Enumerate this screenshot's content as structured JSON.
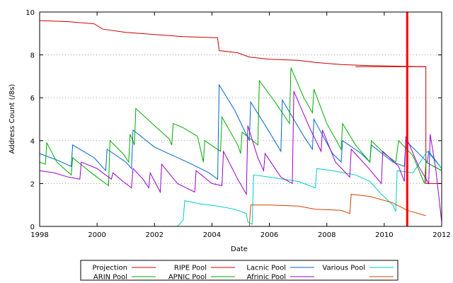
{
  "chart_data": {
    "type": "line",
    "xlabel": "Date",
    "ylabel": "Address Count (/8s)",
    "xlim": [
      1998,
      2012
    ],
    "ylim": [
      0,
      10
    ],
    "x_ticks": [
      1998,
      2000,
      2002,
      2004,
      2006,
      2008,
      2010,
      2012
    ],
    "y_ticks": [
      0,
      2,
      4,
      6,
      8,
      10
    ],
    "grid": "horizontal dotted",
    "legend_position": "bottom",
    "marker_line": {
      "x": 2010.8,
      "color": "#ff0000"
    },
    "series": [
      {
        "name": "Projection",
        "color": "#cc0000",
        "points": [
          [
            2009.0,
            7.45
          ],
          [
            2011.45,
            7.45
          ],
          [
            2011.45,
            2.0
          ],
          [
            2012.0,
            2.0
          ]
        ]
      },
      {
        "name": "RIPE Pool",
        "color": "#cc0000",
        "points": [
          [
            1998.0,
            9.6
          ],
          [
            1999.0,
            9.55
          ],
          [
            1999.9,
            9.45
          ],
          [
            2000.2,
            9.2
          ],
          [
            2001.0,
            9.05
          ],
          [
            2002.0,
            8.95
          ],
          [
            2003.0,
            8.85
          ],
          [
            2004.2,
            8.8
          ],
          [
            2004.25,
            8.2
          ],
          [
            2004.9,
            8.1
          ],
          [
            2005.3,
            7.9
          ],
          [
            2006.0,
            7.8
          ],
          [
            2007.0,
            7.75
          ],
          [
            2007.6,
            7.65
          ],
          [
            2008.5,
            7.55
          ],
          [
            2009.5,
            7.5
          ],
          [
            2011.45,
            7.45
          ]
        ]
      },
      {
        "name": "Lacnic Pool",
        "color": "#0066cc",
        "points": [
          [
            1998.0,
            3.4
          ],
          [
            1998.6,
            3.1
          ],
          [
            1999.1,
            2.8
          ],
          [
            1999.15,
            3.8
          ],
          [
            1999.9,
            3.2
          ],
          [
            2000.3,
            2.6
          ],
          [
            2000.35,
            3.6
          ],
          [
            2001.0,
            3.0
          ],
          [
            2001.2,
            2.7
          ],
          [
            2001.25,
            4.5
          ],
          [
            2002.0,
            3.7
          ],
          [
            2003.3,
            2.9
          ],
          [
            2003.9,
            2.5
          ],
          [
            2004.2,
            2.2
          ],
          [
            2004.25,
            6.6
          ],
          [
            2004.8,
            5.4
          ],
          [
            2005.3,
            4.0
          ],
          [
            2005.35,
            5.8
          ],
          [
            2006.0,
            4.4
          ],
          [
            2006.4,
            3.5
          ],
          [
            2006.45,
            5.9
          ],
          [
            2007.2,
            4.2
          ],
          [
            2007.5,
            3.6
          ],
          [
            2007.55,
            5.0
          ],
          [
            2008.2,
            3.4
          ],
          [
            2008.5,
            3.0
          ],
          [
            2008.55,
            4.0
          ],
          [
            2009.2,
            3.4
          ],
          [
            2009.5,
            3.0
          ],
          [
            2009.55,
            3.8
          ],
          [
            2010.3,
            3.0
          ],
          [
            2010.7,
            2.8
          ],
          [
            2010.75,
            4.0
          ],
          [
            2011.5,
            3.0
          ],
          [
            2011.55,
            3.5
          ],
          [
            2012.0,
            2.7
          ]
        ]
      },
      {
        "name": "Various Pool",
        "color": "#00cccc",
        "points": [
          [
            2002.8,
            0.0
          ],
          [
            2003.0,
            0.3
          ],
          [
            2003.05,
            1.2
          ],
          [
            2003.6,
            1.05
          ],
          [
            2004.2,
            0.95
          ],
          [
            2004.8,
            0.8
          ],
          [
            2005.2,
            0.6
          ],
          [
            2005.25,
            0.2
          ],
          [
            2005.4,
            0.1
          ],
          [
            2005.45,
            2.4
          ],
          [
            2006.0,
            2.3
          ],
          [
            2007.0,
            2.1
          ],
          [
            2007.6,
            1.8
          ],
          [
            2007.65,
            2.7
          ],
          [
            2008.2,
            2.6
          ],
          [
            2009.0,
            2.4
          ],
          [
            2009.5,
            2.1
          ],
          [
            2009.9,
            1.5
          ],
          [
            2010.3,
            1.0
          ],
          [
            2010.4,
            0.7
          ],
          [
            2010.45,
            2.6
          ],
          [
            2011.0,
            2.5
          ],
          [
            2011.5,
            3.5
          ],
          [
            2012.0,
            2.7
          ]
        ]
      },
      {
        "name": "ARIN Pool",
        "color": "#00aa00",
        "points": [
          [
            1998.0,
            3.0
          ],
          [
            1998.2,
            2.9
          ],
          [
            1998.25,
            3.9
          ],
          [
            1998.6,
            3.0
          ],
          [
            1999.1,
            2.4
          ],
          [
            1999.15,
            3.2
          ],
          [
            1999.8,
            2.5
          ],
          [
            2000.4,
            1.9
          ],
          [
            2000.45,
            4.0
          ],
          [
            2000.9,
            3.4
          ],
          [
            2001.1,
            3.0
          ],
          [
            2001.15,
            4.3
          ],
          [
            2001.3,
            3.8
          ],
          [
            2001.35,
            5.5
          ],
          [
            2002.0,
            4.7
          ],
          [
            2002.5,
            4.1
          ],
          [
            2002.6,
            3.8
          ],
          [
            2002.65,
            4.8
          ],
          [
            2003.0,
            4.6
          ],
          [
            2003.5,
            4.2
          ],
          [
            2003.7,
            3.0
          ],
          [
            2003.75,
            4.0
          ],
          [
            2004.3,
            3.5
          ],
          [
            2004.35,
            5.1
          ],
          [
            2004.9,
            3.8
          ],
          [
            2005.0,
            3.4
          ],
          [
            2005.05,
            4.4
          ],
          [
            2005.6,
            3.8
          ],
          [
            2005.65,
            6.8
          ],
          [
            2006.2,
            5.8
          ],
          [
            2006.7,
            4.8
          ],
          [
            2006.75,
            7.4
          ],
          [
            2007.2,
            6.0
          ],
          [
            2007.5,
            5.3
          ],
          [
            2007.55,
            6.4
          ],
          [
            2008.0,
            4.8
          ],
          [
            2008.5,
            3.6
          ],
          [
            2008.55,
            4.8
          ],
          [
            2009.0,
            3.8
          ],
          [
            2009.5,
            3.0
          ],
          [
            2009.55,
            4.0
          ],
          [
            2010.0,
            3.4
          ],
          [
            2010.4,
            3.0
          ],
          [
            2010.5,
            4.0
          ],
          [
            2011.0,
            3.3
          ],
          [
            2011.4,
            2.0
          ],
          [
            2011.45,
            3.0
          ],
          [
            2012.0,
            2.6
          ]
        ]
      },
      {
        "name": "APNIC Pool",
        "color": "#00aa00",
        "points": [
          [
            2011.45,
            3.0
          ],
          [
            2012.0,
            2.6
          ]
        ]
      },
      {
        "name": "Afrinic Pool",
        "color": "#9900cc",
        "points": [
          [
            1998.0,
            2.6
          ],
          [
            1998.5,
            2.5
          ],
          [
            1999.0,
            2.3
          ],
          [
            1999.4,
            2.2
          ],
          [
            1999.45,
            3.0
          ],
          [
            2000.0,
            2.7
          ],
          [
            2000.5,
            2.2
          ],
          [
            2000.55,
            2.5
          ],
          [
            2000.9,
            2.1
          ],
          [
            2001.2,
            1.8
          ],
          [
            2001.25,
            2.7
          ],
          [
            2001.6,
            2.2
          ],
          [
            2001.8,
            1.8
          ],
          [
            2001.85,
            2.5
          ],
          [
            2002.2,
            1.6
          ],
          [
            2002.25,
            2.9
          ],
          [
            2002.8,
            2.0
          ],
          [
            2003.4,
            1.6
          ],
          [
            2003.45,
            2.6
          ],
          [
            2004.0,
            2.0
          ],
          [
            2004.35,
            1.9
          ],
          [
            2004.4,
            3.5
          ],
          [
            2004.9,
            2.2
          ],
          [
            2005.2,
            1.5
          ],
          [
            2005.25,
            4.7
          ],
          [
            2005.6,
            3.2
          ],
          [
            2005.8,
            2.6
          ],
          [
            2005.85,
            3.4
          ],
          [
            2006.4,
            2.3
          ],
          [
            2006.8,
            2.0
          ],
          [
            2006.85,
            6.3
          ],
          [
            2007.4,
            4.6
          ],
          [
            2007.8,
            3.5
          ],
          [
            2007.85,
            4.5
          ],
          [
            2008.3,
            3.0
          ],
          [
            2008.8,
            2.3
          ],
          [
            2008.85,
            3.6
          ],
          [
            2009.4,
            2.8
          ],
          [
            2009.9,
            2.0
          ],
          [
            2009.95,
            3.5
          ],
          [
            2010.5,
            2.8
          ],
          [
            2010.7,
            2.1
          ],
          [
            2010.75,
            4.2
          ],
          [
            2011.2,
            2.8
          ],
          [
            2011.55,
            2.0
          ],
          [
            2011.6,
            4.3
          ],
          [
            2011.8,
            2.6
          ],
          [
            2012.0,
            0.2
          ]
        ]
      },
      {
        "name": "",
        "color": "#cc4400",
        "points": [
          [
            2005.3,
            0.0
          ],
          [
            2005.35,
            1.0
          ],
          [
            2006.0,
            1.0
          ],
          [
            2007.0,
            0.95
          ],
          [
            2007.6,
            0.8
          ],
          [
            2008.5,
            0.75
          ],
          [
            2008.8,
            0.6
          ],
          [
            2008.85,
            1.5
          ],
          [
            2009.5,
            1.4
          ],
          [
            2010.3,
            1.1
          ],
          [
            2010.8,
            0.75
          ],
          [
            2011.45,
            0.5
          ]
        ]
      }
    ],
    "legend_rows": [
      [
        {
          "label": "Projection",
          "series": 0
        },
        {
          "label": "RIPE Pool",
          "series": 1
        },
        {
          "label": "Lacnic Pool",
          "series": 2
        },
        {
          "label": "Various Pool",
          "series": 3
        }
      ],
      [
        {
          "label": "ARIN Pool",
          "series": 4
        },
        {
          "label": "APNIC Pool",
          "series": 5
        },
        {
          "label": "Afrinic Pool",
          "series": 6
        },
        {
          "label": "",
          "series": 7
        }
      ]
    ]
  }
}
